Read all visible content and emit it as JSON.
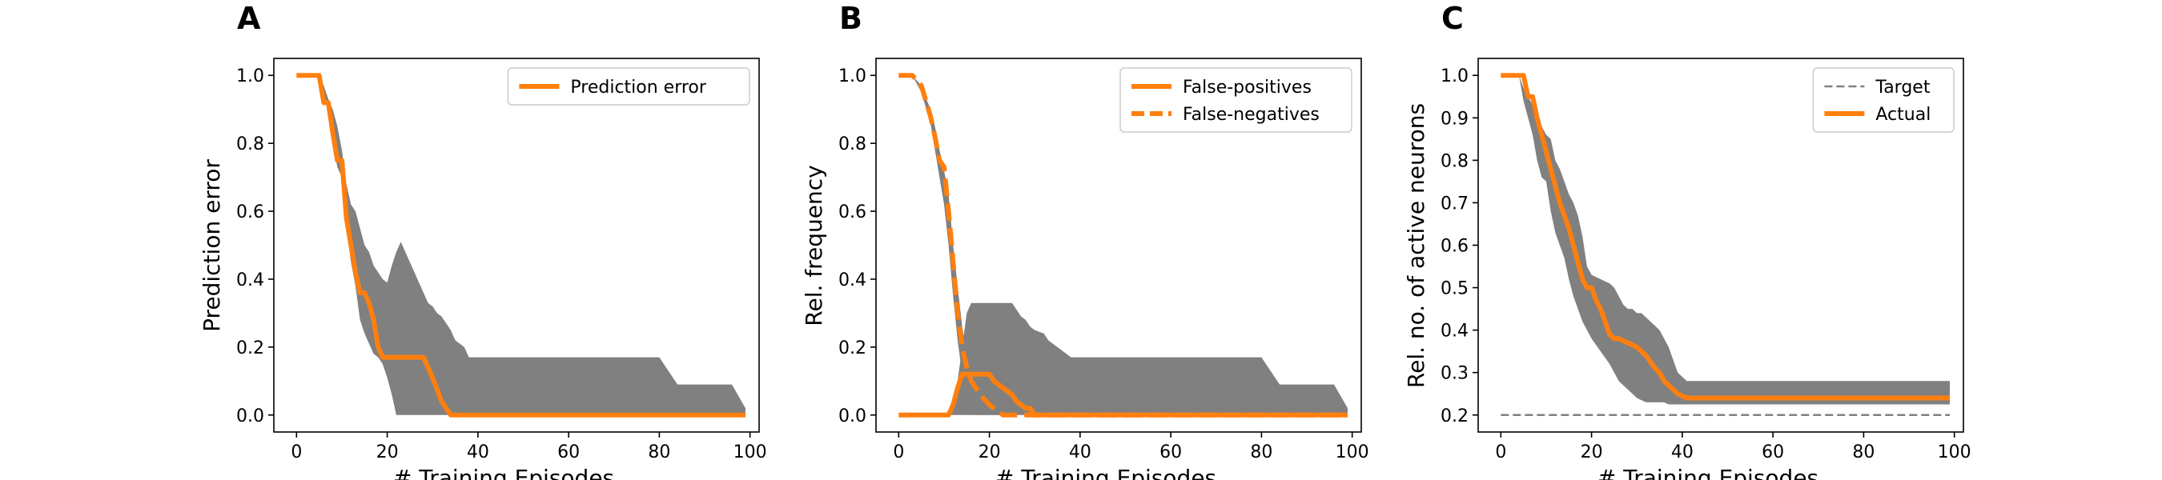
{
  "figure": {
    "background": "#ffffff"
  },
  "colors": {
    "line": "#ff7f0e",
    "band": "#808080",
    "target": "#808080",
    "axis": "#000000",
    "legend_border": "#cccccc"
  },
  "chart_data": [
    {
      "panel": "A",
      "type": "line",
      "xlabel": "# Training Episodes",
      "ylabel": "Prediction error",
      "xlim": [
        -5,
        102
      ],
      "ylim": [
        -0.05,
        1.05
      ],
      "xticks": [
        0,
        20,
        40,
        60,
        80,
        100
      ],
      "xtick_labels": [
        "0",
        "20",
        "40",
        "60",
        "80",
        "100"
      ],
      "yticks": [
        0.0,
        0.2,
        0.4,
        0.6,
        0.8,
        1.0
      ],
      "ytick_labels": [
        "0.0",
        "0.2",
        "0.4",
        "0.6",
        "0.8",
        "1.0"
      ],
      "legend": {
        "placement": "top-right",
        "entries": [
          {
            "label": "Prediction error",
            "style": "solid"
          }
        ]
      },
      "band": {
        "x": [
          0,
          5,
          6,
          7,
          8,
          9,
          10,
          11,
          12,
          13,
          14,
          15,
          16,
          17,
          18,
          19,
          20,
          21,
          22,
          23,
          24,
          25,
          26,
          27,
          28,
          29,
          30,
          31,
          32,
          33,
          34,
          35,
          37,
          38,
          40,
          60,
          80,
          82,
          84,
          90,
          96,
          99
        ],
        "upper": [
          1.0,
          1.0,
          0.97,
          0.93,
          0.9,
          0.85,
          0.78,
          0.68,
          0.62,
          0.6,
          0.55,
          0.5,
          0.48,
          0.44,
          0.42,
          0.4,
          0.39,
          0.44,
          0.48,
          0.51,
          0.48,
          0.45,
          0.42,
          0.39,
          0.36,
          0.33,
          0.32,
          0.3,
          0.29,
          0.27,
          0.25,
          0.22,
          0.2,
          0.17,
          0.17,
          0.17,
          0.17,
          0.13,
          0.09,
          0.09,
          0.09,
          0.02
        ],
        "lower": [
          1.0,
          1.0,
          0.95,
          0.9,
          0.8,
          0.73,
          0.7,
          0.55,
          0.45,
          0.38,
          0.28,
          0.24,
          0.21,
          0.18,
          0.17,
          0.15,
          0.11,
          0.06,
          0.0,
          0.0,
          0.0,
          0.0,
          0.0,
          0.0,
          0.0,
          0.0,
          0.0,
          0.0,
          0.0,
          0.0,
          0.0,
          0.0,
          0.0,
          0.0,
          0.0,
          0.0,
          0.0,
          0.0,
          0.0,
          0.0,
          0.0,
          0.0
        ]
      },
      "series": [
        {
          "name": "Prediction error",
          "style": "solid",
          "x": [
            0,
            5,
            6,
            7,
            8,
            9,
            10,
            11,
            12,
            13,
            14,
            15,
            16,
            17,
            18,
            19,
            20,
            25,
            28,
            30,
            32,
            34,
            99
          ],
          "y": [
            1.0,
            1.0,
            0.92,
            0.92,
            0.83,
            0.75,
            0.75,
            0.58,
            0.5,
            0.42,
            0.36,
            0.36,
            0.33,
            0.28,
            0.2,
            0.17,
            0.17,
            0.17,
            0.17,
            0.11,
            0.04,
            0.0,
            0.0
          ]
        }
      ]
    },
    {
      "panel": "B",
      "type": "line",
      "xlabel": "# Training Episodes",
      "ylabel": "Rel. frequency",
      "xlim": [
        -5,
        102
      ],
      "ylim": [
        -0.05,
        1.05
      ],
      "xticks": [
        0,
        20,
        40,
        60,
        80,
        100
      ],
      "xtick_labels": [
        "0",
        "20",
        "40",
        "60",
        "80",
        "100"
      ],
      "yticks": [
        0.0,
        0.2,
        0.4,
        0.6,
        0.8,
        1.0
      ],
      "ytick_labels": [
        "0.0",
        "0.2",
        "0.4",
        "0.6",
        "0.8",
        "1.0"
      ],
      "legend": {
        "placement": "top-right",
        "entries": [
          {
            "label": "False-positives",
            "style": "solid"
          },
          {
            "label": "False-negatives",
            "style": "dashed"
          }
        ]
      },
      "bands": [
        {
          "x": [
            0,
            10,
            11,
            12,
            13,
            14,
            15,
            16,
            18,
            20,
            25,
            26,
            27,
            28,
            29,
            30,
            32,
            33,
            35,
            36,
            37,
            38,
            40,
            60,
            80,
            82,
            84,
            96,
            99
          ],
          "upper": [
            0.0,
            0.0,
            0.01,
            0.05,
            0.1,
            0.2,
            0.3,
            0.33,
            0.33,
            0.33,
            0.33,
            0.31,
            0.29,
            0.28,
            0.26,
            0.25,
            0.24,
            0.22,
            0.2,
            0.19,
            0.18,
            0.17,
            0.17,
            0.17,
            0.17,
            0.13,
            0.09,
            0.09,
            0.02
          ],
          "lower": [
            0.0,
            0.0,
            0.0,
            0.0,
            0.0,
            0.0,
            0.0,
            0.0,
            0.0,
            0.0,
            0.0,
            0.0,
            0.0,
            0.0,
            0.0,
            0.0,
            0.0,
            0.0,
            0.0,
            0.0,
            0.0,
            0.0,
            0.0,
            0.0,
            0.0,
            0.0,
            0.0,
            0.0,
            0.0
          ]
        },
        {
          "x": [
            0,
            3,
            5,
            7,
            8,
            9,
            10,
            11,
            12,
            13,
            14,
            15,
            16,
            17,
            18,
            20,
            22,
            24,
            26
          ],
          "upper": [
            1.0,
            1.0,
            0.97,
            0.9,
            0.85,
            0.78,
            0.72,
            0.65,
            0.5,
            0.38,
            0.26,
            0.18,
            0.12,
            0.08,
            0.05,
            0.02,
            0.01,
            0.0,
            0.0
          ],
          "lower": [
            1.0,
            1.0,
            0.95,
            0.86,
            0.78,
            0.7,
            0.62,
            0.5,
            0.35,
            0.22,
            0.12,
            0.06,
            0.02,
            0.0,
            0.0,
            0.0,
            0.0,
            0.0,
            0.0
          ]
        }
      ],
      "series": [
        {
          "name": "False-positives",
          "style": "solid",
          "x": [
            0,
            11,
            12,
            13,
            14,
            15,
            16,
            20,
            21,
            22,
            23,
            25,
            26,
            27,
            28,
            29,
            30,
            99
          ],
          "y": [
            0.0,
            0.0,
            0.03,
            0.08,
            0.12,
            0.12,
            0.12,
            0.12,
            0.1,
            0.09,
            0.08,
            0.06,
            0.04,
            0.03,
            0.02,
            0.02,
            0.0,
            0.0
          ]
        },
        {
          "name": "False-negatives",
          "style": "dashed",
          "x": [
            0,
            3,
            5,
            7,
            8,
            9,
            10,
            11,
            12,
            13,
            14,
            15,
            16,
            17,
            18,
            20,
            22,
            23,
            99
          ],
          "y": [
            1.0,
            1.0,
            0.97,
            0.88,
            0.82,
            0.75,
            0.73,
            0.6,
            0.45,
            0.3,
            0.2,
            0.14,
            0.1,
            0.08,
            0.06,
            0.03,
            0.01,
            0.0,
            0.0
          ]
        }
      ]
    },
    {
      "panel": "C",
      "type": "line",
      "xlabel": "# Training Episodes",
      "ylabel": "Rel. no. of active neurons",
      "xlim": [
        -5,
        102
      ],
      "ylim": [
        0.16,
        1.04
      ],
      "xticks": [
        0,
        20,
        40,
        60,
        80,
        100
      ],
      "xtick_labels": [
        "0",
        "20",
        "40",
        "60",
        "80",
        "100"
      ],
      "yticks": [
        0.2,
        0.3,
        0.4,
        0.5,
        0.6,
        0.7,
        0.8,
        0.9,
        1.0
      ],
      "ytick_labels": [
        "0.2",
        "0.3",
        "0.4",
        "0.5",
        "0.6",
        "0.7",
        "0.8",
        "0.9",
        "1.0"
      ],
      "legend": {
        "placement": "top-right",
        "entries": [
          {
            "label": "Target",
            "style": "dashed-gray"
          },
          {
            "label": "Actual",
            "style": "solid"
          }
        ]
      },
      "band": {
        "x": [
          0,
          4,
          5,
          6,
          7,
          8,
          9,
          10,
          11,
          12,
          13,
          14,
          15,
          16,
          17,
          18,
          19,
          20,
          22,
          24,
          25,
          26,
          27,
          28,
          29,
          30,
          31,
          32,
          33,
          34,
          35,
          36,
          37,
          38,
          39,
          40,
          41,
          42,
          60,
          99
        ],
        "upper": [
          1.0,
          1.0,
          0.97,
          0.95,
          0.93,
          0.9,
          0.88,
          0.86,
          0.85,
          0.8,
          0.78,
          0.75,
          0.72,
          0.7,
          0.67,
          0.62,
          0.55,
          0.53,
          0.52,
          0.51,
          0.5,
          0.48,
          0.46,
          0.45,
          0.45,
          0.44,
          0.44,
          0.43,
          0.42,
          0.41,
          0.4,
          0.38,
          0.36,
          0.33,
          0.3,
          0.29,
          0.28,
          0.28,
          0.28,
          0.28
        ],
        "lower": [
          1.0,
          1.0,
          0.94,
          0.9,
          0.86,
          0.8,
          0.76,
          0.75,
          0.68,
          0.63,
          0.6,
          0.57,
          0.52,
          0.48,
          0.45,
          0.42,
          0.4,
          0.38,
          0.35,
          0.32,
          0.3,
          0.28,
          0.27,
          0.26,
          0.25,
          0.24,
          0.235,
          0.23,
          0.23,
          0.23,
          0.23,
          0.23,
          0.225,
          0.225,
          0.225,
          0.225,
          0.225,
          0.225,
          0.225,
          0.225
        ]
      },
      "series": [
        {
          "name": "Target",
          "style": "dashed-gray",
          "x": [
            0,
            99
          ],
          "y": [
            0.2,
            0.2
          ]
        },
        {
          "name": "Actual",
          "style": "solid",
          "x": [
            0,
            5,
            6,
            7,
            8,
            9,
            10,
            11,
            12,
            13,
            14,
            15,
            16,
            17,
            18,
            19,
            20,
            21,
            22,
            23,
            24,
            25,
            26,
            28,
            30,
            32,
            34,
            35,
            36,
            37,
            38,
            39,
            40,
            41,
            99
          ],
          "y": [
            1.0,
            1.0,
            0.95,
            0.95,
            0.9,
            0.86,
            0.82,
            0.78,
            0.74,
            0.7,
            0.67,
            0.64,
            0.6,
            0.56,
            0.52,
            0.5,
            0.5,
            0.47,
            0.45,
            0.42,
            0.39,
            0.38,
            0.38,
            0.37,
            0.36,
            0.34,
            0.31,
            0.3,
            0.28,
            0.27,
            0.26,
            0.25,
            0.245,
            0.24,
            0.24
          ]
        }
      ]
    }
  ]
}
